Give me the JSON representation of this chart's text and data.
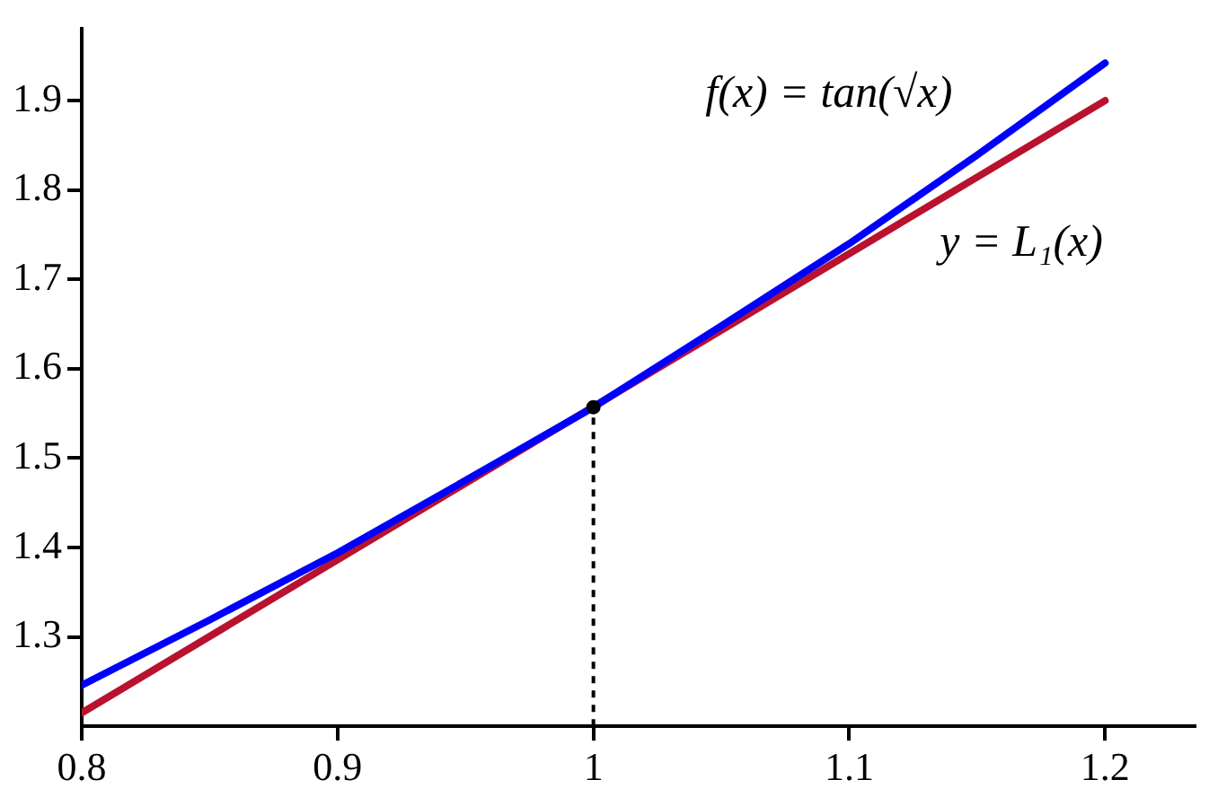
{
  "chart_data": {
    "type": "line",
    "xlim": [
      0.8,
      1.235
    ],
    "ylim": [
      1.2,
      1.98
    ],
    "xticks": [
      0.8,
      0.9,
      1,
      1.1,
      1.2
    ],
    "yticks": [
      1.3,
      1.4,
      1.5,
      1.6,
      1.7,
      1.8,
      1.9
    ],
    "grid": false,
    "legend": false,
    "marker": "none",
    "line_style": "solid",
    "series": [
      {
        "name": "f(x) = tan(√x)",
        "color": "#0000ff",
        "x": [
          0.8,
          0.85,
          0.9,
          0.95,
          1,
          1.05,
          1.1,
          1.15,
          1.2
        ],
        "values": [
          1.246,
          1.319,
          1.394,
          1.475,
          1.557,
          1.648,
          1.74,
          1.839,
          1.942
        ]
      },
      {
        "name": "y = L₁(x)",
        "color": "#b8122e",
        "x": [
          0.8,
          1.2
        ],
        "values": [
          1.215,
          1.9
        ]
      },
      {
        "type": "scatter",
        "color": "#000000",
        "x": [
          1
        ],
        "values": [
          1.557
        ],
        "marker": "circle"
      }
    ],
    "ref_lines": [
      {
        "axis": "x",
        "value": 1,
        "line_style": "dashed",
        "color": "#000000"
      }
    ]
  }
}
